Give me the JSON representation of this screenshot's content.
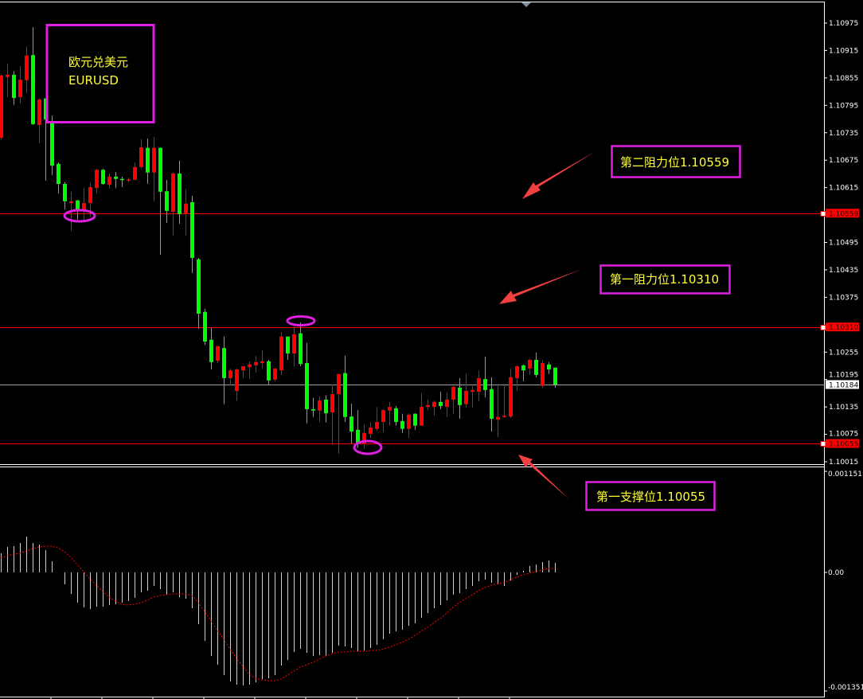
{
  "symbol_box": {
    "title_cn": "欧元兑美元",
    "title_en": "EURUSD"
  },
  "annotations": [
    {
      "label": "第二阻力位1.10559",
      "level": 1.10559
    },
    {
      "label": "第一阻力位1.10310",
      "level": 1.1031
    },
    {
      "label": "第一支撑位1.10055",
      "level": 1.10055
    }
  ],
  "colors": {
    "up": "#ff0000",
    "down": "#00ff00",
    "background": "#000000",
    "annotation_box": "#e020e0",
    "annotation_text": "#ffff33",
    "arrow": "#f04040",
    "level_line": "#ff0000",
    "bid_line": "#a0a0a0",
    "histogram": "#d0d0d0",
    "signal": "#ff0000"
  },
  "chart_data": [
    {
      "type": "candlestick",
      "title": "",
      "y_ticks": [
        "1.10975",
        "1.10915",
        "1.10855",
        "1.10795",
        "1.10735",
        "1.10675",
        "1.10615",
        "1.10495",
        "1.10435",
        "1.10375",
        "1.10255",
        "1.10195",
        "1.10135",
        "1.10075",
        "1.10015"
      ],
      "ylim": [
        1.10015,
        1.10975
      ],
      "price_tags": [
        {
          "value": "1.10559",
          "style": "red"
        },
        {
          "value": "1.10310",
          "style": "red"
        },
        {
          "value": "1.10184",
          "style": "white"
        },
        {
          "value": "1.10055",
          "style": "red"
        }
      ],
      "horizontal_lines": [
        {
          "value": 1.10559,
          "kind": "level"
        },
        {
          "value": 1.1031,
          "kind": "level"
        },
        {
          "value": 1.10184,
          "kind": "bid"
        },
        {
          "value": 1.10055,
          "kind": "level"
        }
      ],
      "ohlc_fields": [
        "open",
        "high",
        "low",
        "close"
      ],
      "candles": [
        [
          1.10724,
          1.10863,
          1.1072,
          1.1086
        ],
        [
          1.10857,
          1.10886,
          1.10813,
          1.10862
        ],
        [
          1.10862,
          1.1087,
          1.10796,
          1.10811
        ],
        [
          1.10813,
          1.10881,
          1.10799,
          1.10851
        ],
        [
          1.1085,
          1.10924,
          1.10822,
          1.10904
        ],
        [
          1.10905,
          1.10966,
          1.10752,
          1.10754
        ],
        [
          1.10752,
          1.1081,
          1.10712,
          1.10808
        ],
        [
          1.1081,
          1.1081,
          1.1063,
          1.10764
        ],
        [
          1.10756,
          1.10773,
          1.10642,
          1.10663
        ],
        [
          1.10667,
          1.1067,
          1.10602,
          1.10623
        ],
        [
          1.10623,
          1.10627,
          1.10567,
          1.10585
        ],
        [
          1.10581,
          1.10606,
          1.1052,
          1.10585
        ],
        [
          1.10587,
          1.10588,
          1.10545,
          1.10567
        ],
        [
          1.10567,
          1.10614,
          1.10541,
          1.10581
        ],
        [
          1.10581,
          1.10625,
          1.1055,
          1.10616
        ],
        [
          1.10614,
          1.10656,
          1.10602,
          1.10654
        ],
        [
          1.10654,
          1.10656,
          1.10621,
          1.10623
        ],
        [
          1.10621,
          1.10646,
          1.10613,
          1.10639
        ],
        [
          1.10639,
          1.10649,
          1.10614,
          1.10634
        ],
        [
          1.10634,
          1.10639,
          1.10616,
          1.10633
        ],
        [
          1.10632,
          1.10637,
          1.10627,
          1.10633
        ],
        [
          1.10632,
          1.1067,
          1.10631,
          1.1066
        ],
        [
          1.1066,
          1.10721,
          1.10656,
          1.10703
        ],
        [
          1.10702,
          1.10722,
          1.10623,
          1.10648
        ],
        [
          1.10648,
          1.10726,
          1.10585,
          1.10702
        ],
        [
          1.10702,
          1.10703,
          1.10468,
          1.10606
        ],
        [
          1.10607,
          1.10632,
          1.10538,
          1.10564
        ],
        [
          1.10562,
          1.10648,
          1.1051,
          1.10646
        ],
        [
          1.10646,
          1.10674,
          1.10536,
          1.10557
        ],
        [
          1.10557,
          1.10611,
          1.1051,
          1.1058
        ],
        [
          1.10583,
          1.10597,
          1.10428,
          1.10461
        ],
        [
          1.10458,
          1.10461,
          1.10306,
          1.10339
        ],
        [
          1.10343,
          1.1035,
          1.10271,
          1.10278
        ],
        [
          1.10282,
          1.10308,
          1.10217,
          1.10233
        ],
        [
          1.10236,
          1.10268,
          1.10231,
          1.10268
        ],
        [
          1.10264,
          1.10289,
          1.10141,
          1.10198
        ],
        [
          1.10198,
          1.10219,
          1.10182,
          1.10215
        ],
        [
          1.1017,
          1.10219,
          1.10149,
          1.10217
        ],
        [
          1.10215,
          1.10224,
          1.10198,
          1.10224
        ],
        [
          1.10222,
          1.10235,
          1.10196,
          1.10228
        ],
        [
          1.10226,
          1.10247,
          1.1021,
          1.10233
        ],
        [
          1.10231,
          1.10259,
          1.10219,
          1.10235
        ],
        [
          1.10235,
          1.10238,
          1.10184,
          1.10193
        ],
        [
          1.10195,
          1.10219,
          1.10191,
          1.10219
        ],
        [
          1.10215,
          1.10299,
          1.10205,
          1.10289
        ],
        [
          1.10289,
          1.10289,
          1.10238,
          1.10252
        ],
        [
          1.10252,
          1.10311,
          1.10224,
          1.10294
        ],
        [
          1.10296,
          1.1032,
          1.10224,
          1.10229
        ],
        [
          1.10231,
          1.10275,
          1.10099,
          1.1013
        ],
        [
          1.1013,
          1.10155,
          1.10113,
          1.10127
        ],
        [
          1.10127,
          1.10158,
          1.10102,
          1.10149
        ],
        [
          1.10151,
          1.1016,
          1.10101,
          1.10121
        ],
        [
          1.10123,
          1.10184,
          1.10052,
          1.10163
        ],
        [
          1.10163,
          1.10207,
          1.10033,
          1.10207
        ],
        [
          1.10209,
          1.10247,
          1.10102,
          1.10113
        ],
        [
          1.10114,
          1.10142,
          1.10055,
          1.10081
        ],
        [
          1.10085,
          1.10128,
          1.10045,
          1.10055
        ],
        [
          1.10055,
          1.10097,
          1.10043,
          1.10078
        ],
        [
          1.10076,
          1.10101,
          1.10067,
          1.1009
        ],
        [
          1.10087,
          1.10135,
          1.10083,
          1.10102
        ],
        [
          1.10102,
          1.1013,
          1.1008,
          1.10128
        ],
        [
          1.10127,
          1.10146,
          1.10094,
          1.10135
        ],
        [
          1.10132,
          1.10137,
          1.10094,
          1.10102
        ],
        [
          1.10104,
          1.1012,
          1.10078,
          1.10087
        ],
        [
          1.10087,
          1.10121,
          1.10067,
          1.10118
        ],
        [
          1.1012,
          1.10121,
          1.10085,
          1.10094
        ],
        [
          1.10094,
          1.10165,
          1.10094,
          1.10135
        ],
        [
          1.10135,
          1.10151,
          1.10128,
          1.10139
        ],
        [
          1.10135,
          1.10149,
          1.10116,
          1.10146
        ],
        [
          1.10146,
          1.10168,
          1.1013,
          1.10137
        ],
        [
          1.10135,
          1.10167,
          1.10113,
          1.10151
        ],
        [
          1.10151,
          1.10181,
          1.1012,
          1.10179
        ],
        [
          1.10177,
          1.10198,
          1.10109,
          1.10139
        ],
        [
          1.10141,
          1.10207,
          1.10134,
          1.1017
        ],
        [
          1.10168,
          1.10181,
          1.10134,
          1.10172
        ],
        [
          1.10168,
          1.10214,
          1.10148,
          1.10198
        ],
        [
          1.10196,
          1.10245,
          1.10156,
          1.10172
        ],
        [
          1.10174,
          1.102,
          1.10081,
          1.10109
        ],
        [
          1.10107,
          1.10186,
          1.10069,
          1.10113
        ],
        [
          1.10113,
          1.10186,
          1.10111,
          1.10116
        ],
        [
          1.10114,
          1.10219,
          1.10111,
          1.102
        ],
        [
          1.10198,
          1.10226,
          1.1017,
          1.10224
        ],
        [
          1.10226,
          1.10228,
          1.10191,
          1.10215
        ],
        [
          1.10219,
          1.1024,
          1.10205,
          1.10238
        ],
        [
          1.10238,
          1.10254,
          1.102,
          1.10205
        ],
        [
          1.10181,
          1.10238,
          1.10177,
          1.10231
        ],
        [
          1.10228,
          1.10233,
          1.10207,
          1.10217
        ],
        [
          1.10221,
          1.10221,
          1.10177,
          1.10184
        ]
      ]
    },
    {
      "type": "bar+line",
      "title": "",
      "y_ticks": [
        "0.001151",
        "0.00",
        "-0.001351"
      ],
      "ylim": [
        -0.001351,
        0.001151
      ],
      "histogram": [
        0.000218,
        0.00029,
        0.000299,
        0.000336,
        0.000408,
        0.000336,
        0.000317,
        0.000254,
        0.000127,
        0.0,
        -0.000136,
        -0.000245,
        -0.000345,
        -0.000399,
        -0.000417,
        -0.00039,
        -0.00039,
        -0.000372,
        -0.000363,
        -0.000345,
        -0.000327,
        -0.00029,
        -0.000227,
        -0.000209,
        -0.000154,
        -0.00019,
        -0.000254,
        -0.000227,
        -0.000281,
        -0.000299,
        -0.000408,
        -0.00059,
        -0.00078,
        -0.000952,
        -0.001052,
        -0.00117,
        -0.001243,
        -0.001279,
        -0.001288,
        -0.001279,
        -0.001252,
        -0.001215,
        -0.001206,
        -0.00117,
        -0.001061,
        -0.000998,
        -0.000907,
        -0.000871,
        -0.000916,
        -0.000952,
        -0.000943,
        -0.000952,
        -0.000916,
        -0.000834,
        -0.000844,
        -0.000862,
        -0.000898,
        -0.000889,
        -0.000862,
        -0.000825,
        -0.000762,
        -0.000698,
        -0.000671,
        -0.000653,
        -0.000608,
        -0.00058,
        -0.000517,
        -0.000463,
        -0.000408,
        -0.000372,
        -0.000317,
        -0.000254,
        -0.000236,
        -0.00019,
        -0.000154,
        -0.0001,
        -8.2e-05,
        -0.000118,
        -0.000136,
        -0.000154,
        -9.1e-05,
        -2.7e-05,
        1.8e-05,
        7.3e-05,
        9.1e-05,
        0.000118,
        0.000136,
        0.000109
      ],
      "signal": [
        0.000163,
        0.00019,
        0.000209,
        0.000218,
        0.000245,
        0.000272,
        0.00029,
        0.000299,
        0.000299,
        0.000281,
        0.000236,
        0.000172,
        9.1e-05,
        9e-06,
        -7.3e-05,
        -0.000145,
        -0.000218,
        -0.000281,
        -0.000327,
        -0.000363,
        -0.000372,
        -0.000363,
        -0.000345,
        -0.000317,
        -0.000281,
        -0.000263,
        -0.000254,
        -0.000245,
        -0.000245,
        -0.000245,
        -0.000263,
        -0.000345,
        -0.000444,
        -0.000553,
        -0.000662,
        -0.000762,
        -0.000871,
        -0.00098,
        -0.00107,
        -0.001161,
        -0.001206,
        -0.001224,
        -0.001234,
        -0.001234,
        -0.001215,
        -0.00117,
        -0.001125,
        -0.001079,
        -0.001052,
        -0.001025,
        -0.000989,
        -0.000952,
        -0.000925,
        -0.000907,
        -0.000907,
        -0.000898,
        -0.000898,
        -0.000898,
        -0.000889,
        -0.000889,
        -0.000871,
        -0.000853,
        -0.000825,
        -0.000798,
        -0.000762,
        -0.000717,
        -0.000671,
        -0.000626,
        -0.000571,
        -0.000526,
        -0.000463,
        -0.000399,
        -0.000345,
        -0.000299,
        -0.000254,
        -0.000209,
        -0.000172,
        -0.000145,
        -0.000127,
        -0.000118,
        -8.2e-05,
        -5.4e-05,
        -2.7e-05,
        -9e-06,
        9e-06,
        2.7e-05,
        4.5e-05,
        4.5e-05
      ]
    }
  ]
}
